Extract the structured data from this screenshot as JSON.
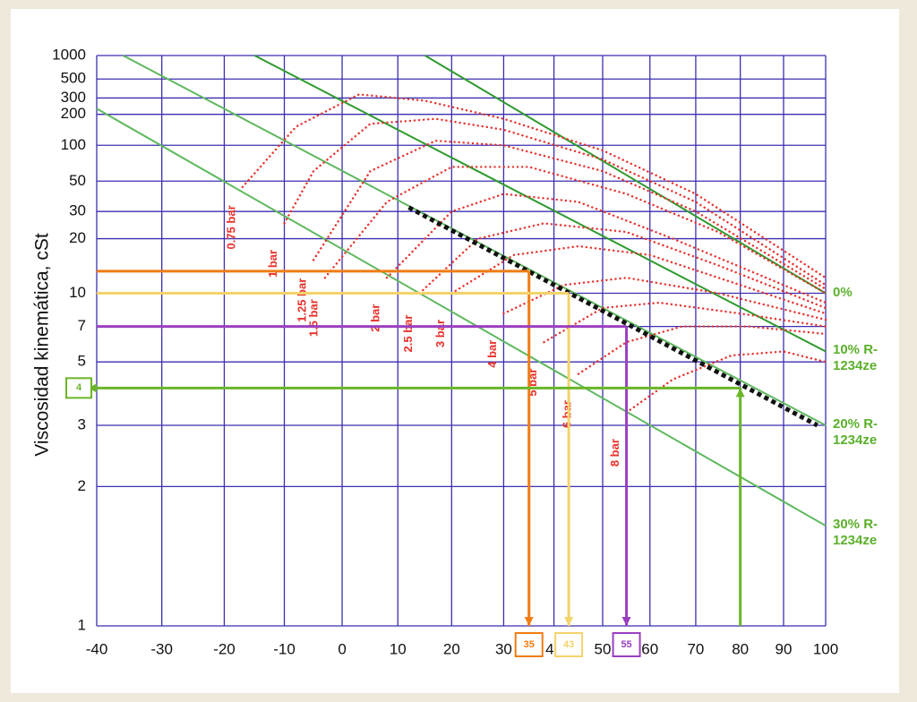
{
  "chart_data": {
    "type": "line",
    "ylabel": "Viscosidad kinemática, cSt",
    "xlim": [
      -40,
      100
    ],
    "xticks": [
      -40,
      -30,
      -20,
      -10,
      0,
      10,
      20,
      30,
      40,
      50,
      60,
      70,
      80,
      90,
      100
    ],
    "ylim": [
      1,
      1000
    ],
    "yticks": [
      1,
      2,
      3,
      5,
      7,
      10,
      20,
      30,
      50,
      100,
      200,
      300,
      500,
      1000
    ],
    "grid": true,
    "grid_color": "#3b2fb0",
    "series": [
      {
        "name": "0%",
        "color": "#2f9a2f",
        "x": [
          15,
          100
        ],
        "values": [
          1000,
          10
        ]
      },
      {
        "name": "10% R-1234ze",
        "color": "#2f9a2f",
        "x": [
          -15,
          100
        ],
        "values": [
          1000,
          5.5
        ]
      },
      {
        "name": "20% R-1234ze",
        "color": "#5fb85f",
        "x": [
          -36,
          100
        ],
        "values": [
          1000,
          3
        ]
      },
      {
        "name": "30% R-1234ze",
        "color": "#5fb85f",
        "x": [
          -40,
          100
        ],
        "values": [
          230,
          1.6
        ]
      }
    ],
    "pressure_color": "#e8302a",
    "pressure_curves": [
      {
        "name": "0.75 bar",
        "x": [
          -17,
          -8,
          3,
          15,
          30,
          50,
          70,
          100
        ],
        "values": [
          45,
          150,
          330,
          280,
          180,
          90,
          40,
          12
        ]
      },
      {
        "name": "1 bar",
        "x": [
          -10,
          -5,
          5,
          17,
          30,
          50,
          70,
          100
        ],
        "values": [
          25,
          60,
          160,
          180,
          140,
          75,
          35,
          11
        ]
      },
      {
        "name": "1.25 bar",
        "x": [
          -5,
          5,
          17,
          30,
          50,
          70,
          100
        ],
        "values": [
          15,
          60,
          110,
          100,
          60,
          30,
          10.5
        ]
      },
      {
        "name": "1.5 bar",
        "x": [
          -3,
          8,
          20,
          35,
          55,
          75,
          100
        ],
        "values": [
          12,
          35,
          65,
          65,
          40,
          22,
          10
        ]
      },
      {
        "name": "2 bar",
        "x": [
          8,
          20,
          30,
          45,
          65,
          100
        ],
        "values": [
          12,
          30,
          40,
          35,
          20,
          9
        ]
      },
      {
        "name": "2.5 bar",
        "x": [
          14,
          25,
          38,
          55,
          75,
          100
        ],
        "values": [
          10,
          20,
          25,
          22,
          14,
          8.5
        ]
      },
      {
        "name": "3 bar",
        "x": [
          20,
          32,
          45,
          60,
          80,
          100
        ],
        "values": [
          10,
          16,
          18,
          16,
          11,
          8
        ]
      },
      {
        "name": "4 bar",
        "x": [
          30,
          42,
          55,
          75,
          100
        ],
        "values": [
          8,
          11,
          12,
          10,
          7.5
        ]
      },
      {
        "name": "5 bar",
        "x": [
          38,
          50,
          62,
          80,
          100
        ],
        "values": [
          6,
          8.5,
          9,
          8,
          7
        ]
      },
      {
        "name": "6 bar",
        "x": [
          45,
          55,
          67,
          82,
          100
        ],
        "values": [
          4.5,
          6,
          7,
          7,
          6.5
        ]
      },
      {
        "name": "8 bar",
        "x": [
          55,
          65,
          78,
          90,
          100
        ],
        "values": [
          3.3,
          4.3,
          5.3,
          5.5,
          5
        ]
      }
    ],
    "boundary": {
      "color": "#111111",
      "x": [
        12,
        98
      ],
      "values": [
        32,
        3
      ]
    },
    "readings": [
      {
        "color": "#f07c12",
        "viscosity": 13,
        "temperature": 35,
        "label": "35",
        "result": "temperature"
      },
      {
        "color": "#f3d36a",
        "viscosity": 10,
        "temperature": 43,
        "label": "43",
        "result": "temperature"
      },
      {
        "color": "#9a3fc0",
        "viscosity": 7,
        "temperature": 55,
        "label": "55",
        "result": "temperature"
      },
      {
        "color": "#6bb52a",
        "viscosity": 4,
        "temperature": 80,
        "label": "4",
        "result": "viscosity"
      }
    ]
  }
}
